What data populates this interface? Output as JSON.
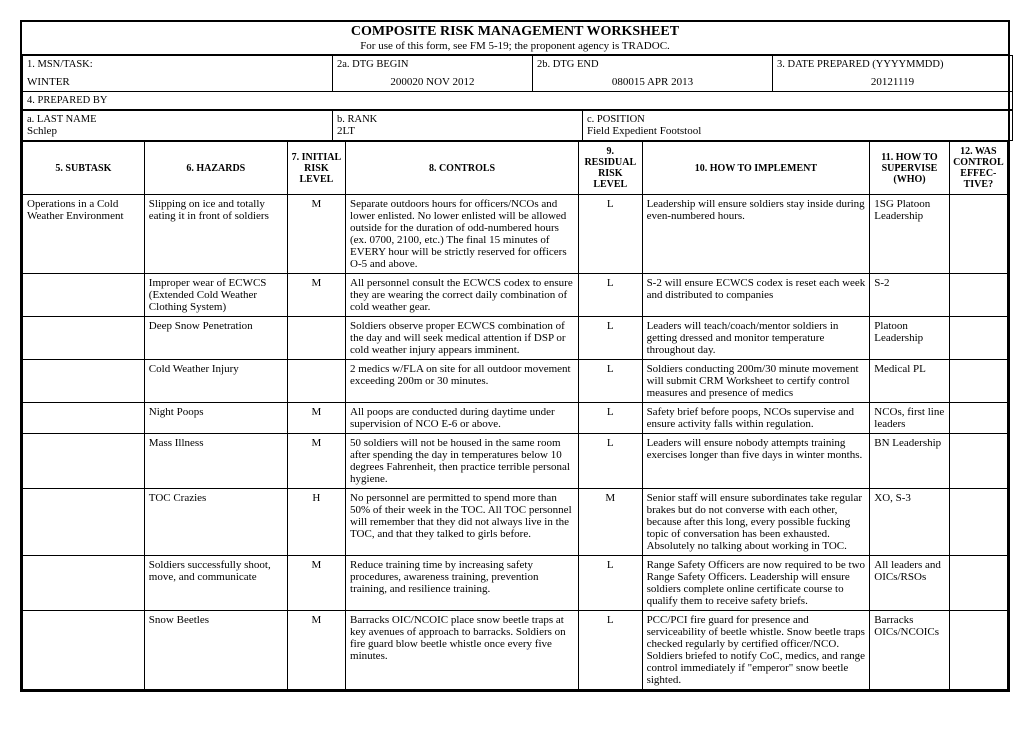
{
  "title": {
    "main": "COMPOSITE RISK MANAGEMENT WORKSHEET",
    "sub": "For use of this form, see FM 5-19; the proponent agency is TRADOC."
  },
  "header": {
    "msn_label": "1. MSN/TASK:",
    "msn_value": "WINTER",
    "dtg_begin_label": "2a. DTG BEGIN",
    "dtg_begin_value": "200020 NOV 2012",
    "dtg_end_label": "2b. DTG END",
    "dtg_end_value": "080015 APR 2013",
    "date_prep_label": "3. DATE PREPARED (YYYYMMDD)",
    "date_prep_value": "20121119",
    "prepared_by_label": "4. PREPARED BY",
    "last_name_label": "a. LAST NAME",
    "last_name_value": "Schlep",
    "rank_label": "b. RANK",
    "rank_value": "2LT",
    "position_label": "c. POSITION",
    "position_value": "Field Expedient Footstool"
  },
  "columns": {
    "c5": "5. SUBTASK",
    "c6": "6. HAZARDS",
    "c7": "7. INITIAL RISK LEVEL",
    "c8": "8. CONTROLS",
    "c9": "9. RESIDUAL RISK LEVEL",
    "c10": "10. HOW TO IMPLEMENT",
    "c11": "11. HOW TO SUPERVISE (WHO)",
    "c12": "12. WAS CONTROL EFFEC-TIVE?"
  },
  "rows": [
    {
      "subtask": "Operations in a Cold Weather Environment",
      "hazard": "Slipping on ice and totally eating it in front of soldiers",
      "initial": "M",
      "controls": "Separate outdoors hours for officers/NCOs and lower enlisted. No lower enlisted will be allowed outside for the duration of odd-numbered hours (ex. 0700, 2100, etc.) The final 15 minutes of EVERY hour will be strictly reserved for officers O-5 and above.",
      "residual": "L",
      "implement": "Leadership will ensure soldiers stay inside during even-numbered hours.",
      "supervise": "1SG Platoon Leadership",
      "effective": ""
    },
    {
      "subtask": "",
      "hazard": "Improper wear of ECWCS (Extended Cold Weather Clothing System)",
      "initial": "M",
      "controls": "All personnel consult the ECWCS codex to ensure they are wearing the correct daily combination of cold weather gear.",
      "residual": "L",
      "implement": "S-2 will ensure ECWCS codex is reset each week and distributed to companies",
      "supervise": "S-2",
      "effective": ""
    },
    {
      "subtask": "",
      "hazard": "Deep Snow Penetration",
      "initial": "",
      "controls": "Soldiers observe proper ECWCS combination of the day and will seek medical attention if DSP or cold weather injury appears imminent.",
      "residual": "L",
      "implement": "Leaders will teach/coach/mentor soldiers in getting dressed and monitor temperature throughout day.",
      "supervise": "Platoon Leadership",
      "effective": ""
    },
    {
      "subtask": "",
      "hazard": "Cold Weather Injury",
      "initial": "",
      "controls": "2 medics w/FLA on site for all outdoor movement exceeding 200m or 30 minutes.",
      "residual": "L",
      "implement": "Soldiers conducting 200m/30 minute movement will submit CRM Worksheet to certify control measures and presence of medics",
      "supervise": "Medical PL",
      "effective": ""
    },
    {
      "subtask": "",
      "hazard": "Night Poops",
      "initial": "M",
      "controls": "All poops are conducted during daytime under supervision of NCO E-6 or above.",
      "residual": "L",
      "implement": "Safety brief before poops, NCOs supervise and ensure activity falls within regulation.",
      "supervise": "NCOs, first line leaders",
      "effective": ""
    },
    {
      "subtask": "",
      "hazard": "Mass Illness",
      "initial": "M",
      "controls": "50 soldiers will not be housed in the same room after spending the day in temperatures below 10 degrees Fahrenheit, then practice terrible personal hygiene.",
      "residual": "L",
      "implement": "Leaders will ensure nobody attempts training exercises longer than five days in winter months.",
      "supervise": "BN Leadership",
      "effective": ""
    },
    {
      "subtask": "",
      "hazard": "TOC Crazies",
      "initial": "H",
      "controls": "No personnel are permitted to spend more than 50% of their week in the TOC. All TOC personnel will remember that they did not always live in the TOC, and that they talked to girls before.",
      "residual": "M",
      "implement": "Senior staff will ensure subordinates take regular brakes but do not converse with each other, because after this long, every possible fucking topic of conversation has been exhausted. Absolutely no talking about working in TOC.",
      "supervise": "XO, S-3",
      "effective": ""
    },
    {
      "subtask": "",
      "hazard": "Soldiers successfully shoot, move, and communicate",
      "initial": "M",
      "controls": "Reduce training time by increasing safety procedures, awareness training, prevention training, and resilience training.",
      "residual": "L",
      "implement": "Range Safety Officers are now required to be two Range Safety Officers. Leadership will ensure soldiers complete online certificate course to qualify them to receive safety briefs.",
      "supervise": "All leaders and OICs/RSOs",
      "effective": ""
    },
    {
      "subtask": "",
      "hazard": "Snow Beetles",
      "initial": "M",
      "controls": "Barracks OIC/NCOIC place snow beetle traps at key avenues of approach to barracks. Soldiers on fire guard blow beetle whistle once every five minutes.",
      "residual": "L",
      "implement": "PCC/PCI fire guard for presence and serviceability of beetle whistle. Snow beetle traps checked regularly by certified officer/NCO. Soldiers briefed to notify CoC, medics, and range control immediately if \"emperor\" snow beetle sighted.",
      "supervise": "Barracks OICs/NCOICs",
      "effective": ""
    }
  ]
}
